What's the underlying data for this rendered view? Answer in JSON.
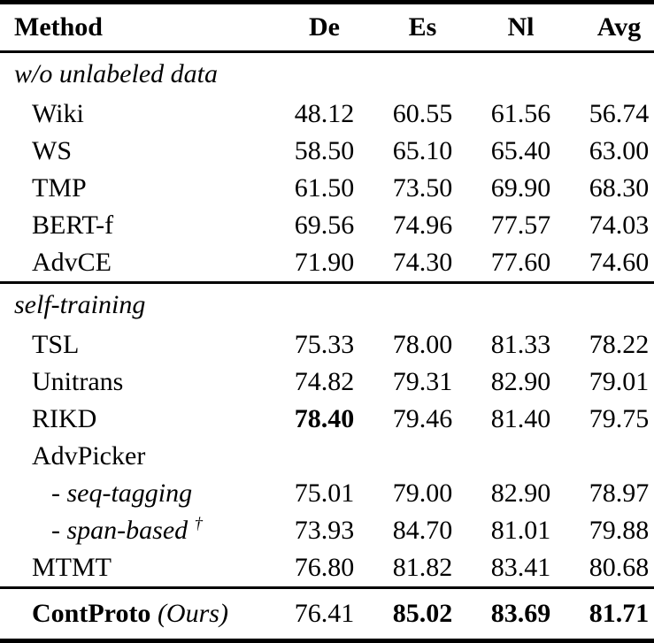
{
  "colors": {
    "text": "#000000",
    "background": "#ffffff",
    "rule": "#000000"
  },
  "table": {
    "columns": [
      "Method",
      "De",
      "Es",
      "Nl",
      "Avg"
    ],
    "sections": [
      {
        "label": "w/o unlabeled data",
        "rows": [
          {
            "label": "Wiki",
            "values": [
              "48.12",
              "60.55",
              "61.56",
              "56.74"
            ]
          },
          {
            "label": "WS",
            "values": [
              "58.50",
              "65.10",
              "65.40",
              "63.00"
            ]
          },
          {
            "label": "TMP",
            "values": [
              "61.50",
              "73.50",
              "69.90",
              "68.30"
            ]
          },
          {
            "label": "BERT-f",
            "values": [
              "69.56",
              "74.96",
              "77.57",
              "74.03"
            ]
          },
          {
            "label": "AdvCE",
            "values": [
              "71.90",
              "74.30",
              "77.60",
              "74.60"
            ]
          }
        ]
      },
      {
        "label": "self-training",
        "rows": [
          {
            "label": "TSL",
            "values": [
              "75.33",
              "78.00",
              "81.33",
              "78.22"
            ]
          },
          {
            "label": "Unitrans",
            "values": [
              "74.82",
              "79.31",
              "82.90",
              "79.01"
            ]
          },
          {
            "label": "RIKD",
            "values": [
              "78.40",
              "79.46",
              "81.40",
              "79.75"
            ],
            "bold_cols": [
              0
            ]
          },
          {
            "label": "AdvPicker",
            "values": [
              "",
              "",
              "",
              ""
            ]
          },
          {
            "label": "- seq-tagging",
            "italic": true,
            "sub": true,
            "values": [
              "75.01",
              "79.00",
              "82.90",
              "78.97"
            ]
          },
          {
            "label": "- span-based",
            "italic": true,
            "sub": true,
            "sup": "†",
            "values": [
              "73.93",
              "84.70",
              "81.01",
              "79.88"
            ]
          },
          {
            "label": "MTMT",
            "values": [
              "76.80",
              "81.82",
              "83.41",
              "80.68"
            ]
          }
        ]
      }
    ],
    "footer": {
      "label": "ContProto",
      "label_suffix": "(Ours)",
      "values": [
        "76.41",
        "85.02",
        "83.69",
        "81.71"
      ],
      "bold_cols": [
        1,
        2,
        3
      ]
    }
  }
}
